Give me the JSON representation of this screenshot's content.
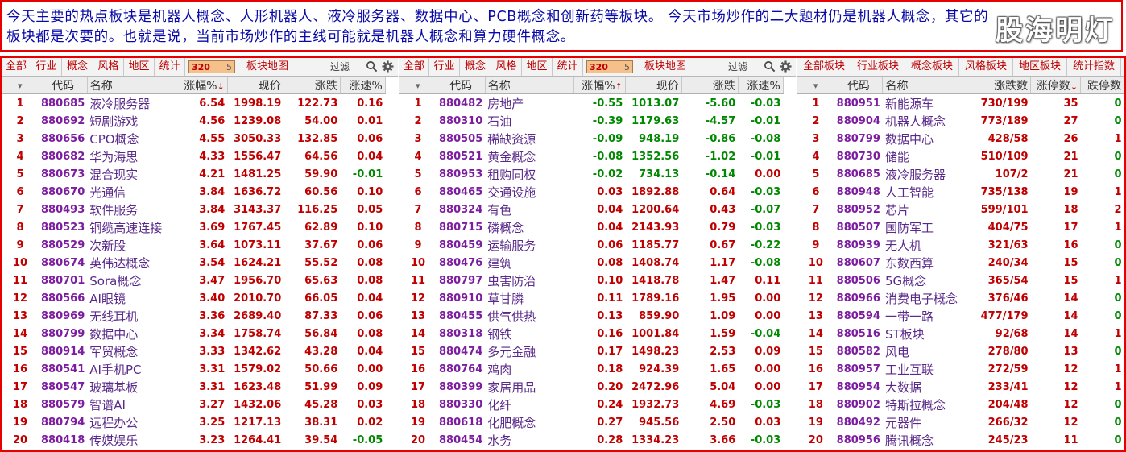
{
  "header": {
    "text": "今天主要的热点板块是机器人概念、人形机器人、液冷服务器、数据中心、PCB概念和创新药等板块。 今天市场炒作的二大题材仍是机器人概念，其它的板块都是次要的。也就是说，当前市场炒作的主线可能就是机器人概念和算力硬件概念。",
    "brand": "股海明灯"
  },
  "panel1": {
    "toolbar": {
      "all": "全部",
      "industry": "行业",
      "concept": "概念",
      "style": "风格",
      "region": "地区",
      "stats": "统计",
      "count": "320",
      "count_badge": "5",
      "map": "板块地图",
      "filter": "过滤"
    },
    "headers": {
      "code": "代码",
      "name": "名称",
      "pct": "涨幅%",
      "price": "现价",
      "chg": "涨跌",
      "speed": "涨速%"
    },
    "sort_arrow": "↓",
    "rows": [
      {
        "i": "1",
        "code": "880685",
        "name": "液冷服务器",
        "pct": "6.54",
        "price": "1998.19",
        "chg": "122.73",
        "speed": "0.16"
      },
      {
        "i": "2",
        "code": "880692",
        "name": "短剧游戏",
        "pct": "4.56",
        "price": "1239.08",
        "chg": "54.00",
        "speed": "0.01"
      },
      {
        "i": "3",
        "code": "880656",
        "name": "CPO概念",
        "pct": "4.55",
        "price": "3050.33",
        "chg": "132.85",
        "speed": "0.06"
      },
      {
        "i": "4",
        "code": "880682",
        "name": "华为海思",
        "pct": "4.33",
        "price": "1556.47",
        "chg": "64.56",
        "speed": "0.04"
      },
      {
        "i": "5",
        "code": "880673",
        "name": "混合现实",
        "pct": "4.21",
        "price": "1481.25",
        "chg": "59.90",
        "speed": "-0.01"
      },
      {
        "i": "6",
        "code": "880670",
        "name": "光通信",
        "pct": "3.84",
        "price": "1636.72",
        "chg": "60.56",
        "speed": "0.10"
      },
      {
        "i": "7",
        "code": "880493",
        "name": "软件服务",
        "pct": "3.84",
        "price": "3143.37",
        "chg": "116.25",
        "speed": "0.05"
      },
      {
        "i": "8",
        "code": "880523",
        "name": "铜缆高速连接",
        "pct": "3.69",
        "price": "1767.45",
        "chg": "62.89",
        "speed": "0.10"
      },
      {
        "i": "9",
        "code": "880529",
        "name": "次新股",
        "pct": "3.64",
        "price": "1073.11",
        "chg": "37.67",
        "speed": "0.06"
      },
      {
        "i": "10",
        "code": "880674",
        "name": "英伟达概念",
        "pct": "3.54",
        "price": "1624.21",
        "chg": "55.52",
        "speed": "0.08"
      },
      {
        "i": "11",
        "code": "880701",
        "name": "Sora概念",
        "pct": "3.47",
        "price": "1956.70",
        "chg": "65.63",
        "speed": "0.08"
      },
      {
        "i": "12",
        "code": "880566",
        "name": "AI眼镜",
        "pct": "3.40",
        "price": "2010.70",
        "chg": "66.05",
        "speed": "0.04"
      },
      {
        "i": "13",
        "code": "880969",
        "name": "无线耳机",
        "pct": "3.36",
        "price": "2689.40",
        "chg": "87.33",
        "speed": "0.06"
      },
      {
        "i": "14",
        "code": "880799",
        "name": "数据中心",
        "pct": "3.34",
        "price": "1758.74",
        "chg": "56.84",
        "speed": "0.08"
      },
      {
        "i": "15",
        "code": "880914",
        "name": "军贸概念",
        "pct": "3.33",
        "price": "1342.62",
        "chg": "43.28",
        "speed": "0.04"
      },
      {
        "i": "16",
        "code": "880541",
        "name": "AI手机PC",
        "pct": "3.31",
        "price": "1579.02",
        "chg": "50.66",
        "speed": "0.00"
      },
      {
        "i": "17",
        "code": "880547",
        "name": "玻璃基板",
        "pct": "3.31",
        "price": "1623.48",
        "chg": "51.99",
        "speed": "0.09"
      },
      {
        "i": "18",
        "code": "880579",
        "name": "智谱AI",
        "pct": "3.27",
        "price": "1432.06",
        "chg": "45.28",
        "speed": "0.03"
      },
      {
        "i": "19",
        "code": "880794",
        "name": "远程办公",
        "pct": "3.25",
        "price": "1217.13",
        "chg": "38.31",
        "speed": "0.02"
      },
      {
        "i": "20",
        "code": "880418",
        "name": "传媒娱乐",
        "pct": "3.23",
        "price": "1264.41",
        "chg": "39.54",
        "speed": "-0.05"
      }
    ]
  },
  "panel2": {
    "toolbar": {
      "all": "全部",
      "industry": "行业",
      "concept": "概念",
      "style": "风格",
      "region": "地区",
      "stats": "统计",
      "count": "320",
      "count_badge": "5",
      "map": "板块地图",
      "filter": "过滤"
    },
    "headers": {
      "code": "代码",
      "name": "名称",
      "pct": "涨幅%",
      "price": "现价",
      "chg": "涨跌",
      "speed": "涨速%"
    },
    "sort_arrow": "↑",
    "rows": [
      {
        "i": "1",
        "code": "880482",
        "name": "房地产",
        "pct": "-0.55",
        "price": "1013.07",
        "chg": "-5.60",
        "speed": "-0.03"
      },
      {
        "i": "2",
        "code": "880310",
        "name": "石油",
        "pct": "-0.39",
        "price": "1179.63",
        "chg": "-4.57",
        "speed": "-0.01"
      },
      {
        "i": "3",
        "code": "880505",
        "name": "稀缺资源",
        "pct": "-0.09",
        "price": "948.19",
        "chg": "-0.86",
        "speed": "-0.08"
      },
      {
        "i": "4",
        "code": "880521",
        "name": "黄金概念",
        "pct": "-0.08",
        "price": "1352.56",
        "chg": "-1.02",
        "speed": "-0.01"
      },
      {
        "i": "5",
        "code": "880953",
        "name": "租购同权",
        "pct": "-0.02",
        "price": "734.13",
        "chg": "-0.14",
        "speed": "0.00"
      },
      {
        "i": "6",
        "code": "880465",
        "name": "交通设施",
        "pct": "0.03",
        "price": "1892.88",
        "chg": "0.64",
        "speed": "-0.03"
      },
      {
        "i": "7",
        "code": "880324",
        "name": "有色",
        "pct": "0.04",
        "price": "1200.64",
        "chg": "0.43",
        "speed": "-0.07"
      },
      {
        "i": "8",
        "code": "880715",
        "name": "磷概念",
        "pct": "0.04",
        "price": "2143.93",
        "chg": "0.79",
        "speed": "-0.03"
      },
      {
        "i": "9",
        "code": "880459",
        "name": "运输服务",
        "pct": "0.06",
        "price": "1185.77",
        "chg": "0.67",
        "speed": "-0.22"
      },
      {
        "i": "10",
        "code": "880476",
        "name": "建筑",
        "pct": "0.08",
        "price": "1408.74",
        "chg": "1.17",
        "speed": "-0.08"
      },
      {
        "i": "11",
        "code": "880797",
        "name": "虫害防治",
        "pct": "0.10",
        "price": "1418.78",
        "chg": "1.47",
        "speed": "0.11"
      },
      {
        "i": "12",
        "code": "880910",
        "name": "草甘膦",
        "pct": "0.11",
        "price": "1789.16",
        "chg": "1.95",
        "speed": "0.00"
      },
      {
        "i": "13",
        "code": "880455",
        "name": "供气供热",
        "pct": "0.13",
        "price": "859.90",
        "chg": "1.09",
        "speed": "0.00"
      },
      {
        "i": "14",
        "code": "880318",
        "name": "钢铁",
        "pct": "0.16",
        "price": "1001.84",
        "chg": "1.59",
        "speed": "-0.04"
      },
      {
        "i": "15",
        "code": "880474",
        "name": "多元金融",
        "pct": "0.17",
        "price": "1498.23",
        "chg": "2.53",
        "speed": "0.09"
      },
      {
        "i": "16",
        "code": "880764",
        "name": "鸡肉",
        "pct": "0.18",
        "price": "924.39",
        "chg": "1.65",
        "speed": "0.00"
      },
      {
        "i": "17",
        "code": "880399",
        "name": "家居用品",
        "pct": "0.20",
        "price": "2472.96",
        "chg": "5.04",
        "speed": "0.00"
      },
      {
        "i": "18",
        "code": "880330",
        "name": "化纤",
        "pct": "0.24",
        "price": "1932.73",
        "chg": "4.69",
        "speed": "-0.03"
      },
      {
        "i": "19",
        "code": "880618",
        "name": "化肥概念",
        "pct": "0.27",
        "price": "945.56",
        "chg": "2.50",
        "speed": "0.03"
      },
      {
        "i": "20",
        "code": "880454",
        "name": "水务",
        "pct": "0.28",
        "price": "1334.23",
        "chg": "3.66",
        "speed": "-0.03"
      }
    ]
  },
  "panel3": {
    "toolbar": {
      "all": "全部板块",
      "industry": "行业板块",
      "concept": "概念板块",
      "style": "风格板块",
      "region": "地区板块",
      "stats": "统计指数"
    },
    "headers": {
      "code": "代码",
      "name": "名称",
      "ratio": "涨跌数",
      "limit_up": "涨停数",
      "limit_down": "跌停数"
    },
    "sort_arrow": "↓",
    "rows": [
      {
        "i": "1",
        "code": "880951",
        "name": "新能源车",
        "ratio": "730/199",
        "up": "35",
        "down": "0"
      },
      {
        "i": "2",
        "code": "880904",
        "name": "机器人概念",
        "ratio": "773/189",
        "up": "27",
        "down": "0"
      },
      {
        "i": "3",
        "code": "880799",
        "name": "数据中心",
        "ratio": "428/58",
        "up": "26",
        "down": "1"
      },
      {
        "i": "4",
        "code": "880730",
        "name": "储能",
        "ratio": "510/109",
        "up": "21",
        "down": "0"
      },
      {
        "i": "5",
        "code": "880685",
        "name": "液冷服务器",
        "ratio": "107/2",
        "up": "21",
        "down": "0"
      },
      {
        "i": "6",
        "code": "880948",
        "name": "人工智能",
        "ratio": "735/138",
        "up": "19",
        "down": "1"
      },
      {
        "i": "7",
        "code": "880952",
        "name": "芯片",
        "ratio": "599/101",
        "up": "18",
        "down": "2"
      },
      {
        "i": "8",
        "code": "880507",
        "name": "国防军工",
        "ratio": "404/75",
        "up": "17",
        "down": "1"
      },
      {
        "i": "9",
        "code": "880939",
        "name": "无人机",
        "ratio": "321/63",
        "up": "16",
        "down": "0"
      },
      {
        "i": "10",
        "code": "880607",
        "name": "东数西算",
        "ratio": "240/34",
        "up": "15",
        "down": "0"
      },
      {
        "i": "11",
        "code": "880506",
        "name": "5G概念",
        "ratio": "365/54",
        "up": "15",
        "down": "1"
      },
      {
        "i": "12",
        "code": "880966",
        "name": "消费电子概念",
        "ratio": "376/46",
        "up": "14",
        "down": "0"
      },
      {
        "i": "13",
        "code": "880594",
        "name": "一带一路",
        "ratio": "477/179",
        "up": "14",
        "down": "0"
      },
      {
        "i": "14",
        "code": "880516",
        "name": "ST板块",
        "ratio": "92/68",
        "up": "14",
        "down": "1"
      },
      {
        "i": "15",
        "code": "880582",
        "name": "风电",
        "ratio": "278/80",
        "up": "13",
        "down": "0"
      },
      {
        "i": "16",
        "code": "880957",
        "name": "工业互联",
        "ratio": "272/59",
        "up": "12",
        "down": "1"
      },
      {
        "i": "17",
        "code": "880954",
        "name": "大数据",
        "ratio": "233/41",
        "up": "12",
        "down": "1"
      },
      {
        "i": "18",
        "code": "880902",
        "name": "特斯拉概念",
        "ratio": "204/48",
        "up": "12",
        "down": "0"
      },
      {
        "i": "19",
        "code": "880492",
        "name": "元器件",
        "ratio": "266/32",
        "up": "12",
        "down": "0"
      },
      {
        "i": "20",
        "code": "880956",
        "name": "腾讯概念",
        "ratio": "245/23",
        "up": "11",
        "down": "0"
      }
    ]
  }
}
